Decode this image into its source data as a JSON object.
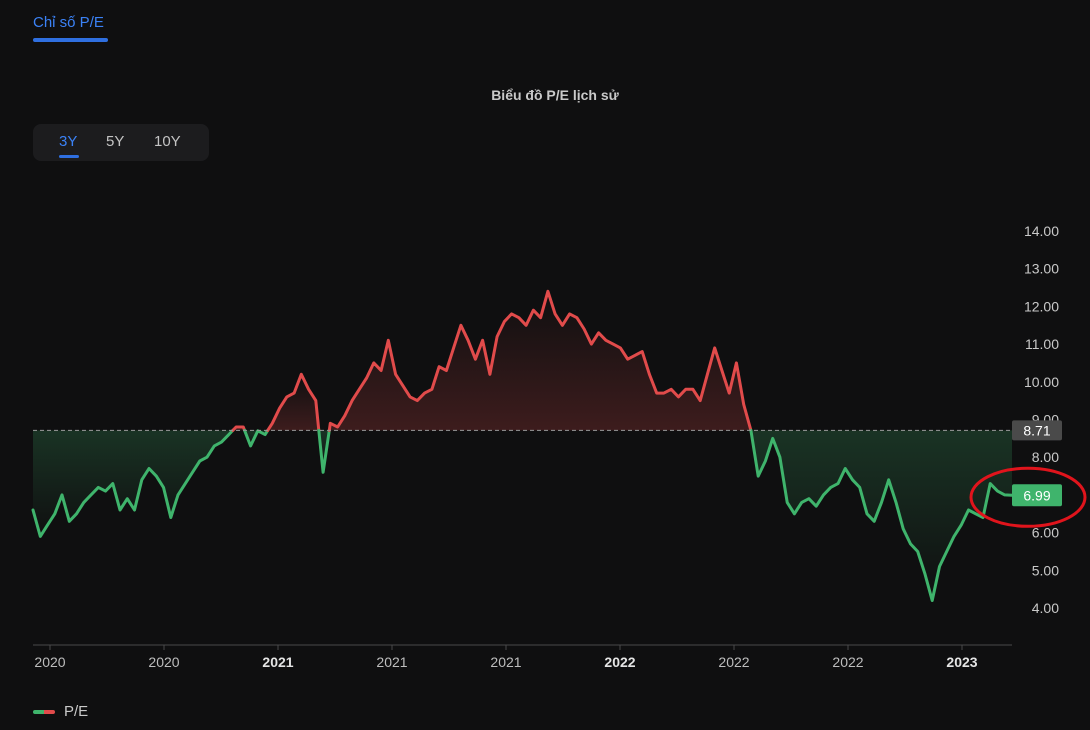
{
  "tab": {
    "label": "Chỉ số P/E"
  },
  "range_selector": {
    "options": [
      "3Y",
      "5Y",
      "10Y"
    ],
    "selected": "3Y"
  },
  "colors": {
    "above": "#e14b4b",
    "below": "#3fb46c",
    "reference": "#9a9a9a",
    "accent": "#3b82f6",
    "highlight_circle": "#e0141c"
  },
  "chart_data": {
    "type": "line",
    "title": "Biểu đồ P/E lịch sử",
    "legend": [
      {
        "name": "P/E",
        "position": "bottom-left"
      }
    ],
    "y_ticks": [
      "14.00",
      "13.00",
      "12.00",
      "11.00",
      "10.00",
      "9.00",
      "8.00",
      "7.00",
      "6.00",
      "5.00",
      "4.00"
    ],
    "ylim": [
      4,
      14
    ],
    "x_ticks": [
      {
        "label": "2020",
        "bold": false
      },
      {
        "label": "2020",
        "bold": false
      },
      {
        "label": "2021",
        "bold": true
      },
      {
        "label": "2021",
        "bold": false
      },
      {
        "label": "2021",
        "bold": false
      },
      {
        "label": "2022",
        "bold": true
      },
      {
        "label": "2022",
        "bold": false
      },
      {
        "label": "2022",
        "bold": false
      },
      {
        "label": "2023",
        "bold": true
      }
    ],
    "reference": {
      "value": 8.71,
      "label": "8.71"
    },
    "last": {
      "value": 6.99,
      "label": "6.99"
    },
    "series": [
      {
        "name": "P/E",
        "values": [
          6.6,
          5.9,
          6.2,
          6.5,
          7.0,
          6.3,
          6.5,
          6.8,
          7.0,
          7.2,
          7.1,
          7.3,
          6.6,
          6.9,
          6.6,
          7.4,
          7.7,
          7.5,
          7.2,
          6.4,
          7.0,
          7.3,
          7.6,
          7.9,
          8.0,
          8.3,
          8.4,
          8.6,
          8.8,
          8.8,
          8.3,
          8.7,
          8.6,
          8.9,
          9.3,
          9.6,
          9.7,
          10.2,
          9.8,
          9.5,
          7.6,
          8.9,
          8.8,
          9.1,
          9.5,
          9.8,
          10.1,
          10.5,
          10.3,
          11.1,
          10.2,
          9.9,
          9.6,
          9.5,
          9.7,
          9.8,
          10.4,
          10.3,
          10.9,
          11.5,
          11.1,
          10.6,
          11.1,
          10.2,
          11.2,
          11.6,
          11.8,
          11.7,
          11.5,
          11.9,
          11.7,
          12.4,
          11.8,
          11.5,
          11.8,
          11.7,
          11.4,
          11.0,
          11.3,
          11.1,
          11.0,
          10.9,
          10.6,
          10.7,
          10.8,
          10.2,
          9.7,
          9.7,
          9.8,
          9.6,
          9.8,
          9.8,
          9.5,
          10.2,
          10.9,
          10.3,
          9.7,
          10.5,
          9.4,
          8.71,
          7.5,
          7.9,
          8.5,
          8.0,
          6.8,
          6.5,
          6.8,
          6.9,
          6.7,
          7.0,
          7.2,
          7.3,
          7.7,
          7.4,
          7.2,
          6.5,
          6.3,
          6.8,
          7.4,
          6.8,
          6.1,
          5.7,
          5.5,
          4.9,
          4.2,
          5.1,
          5.5,
          5.9,
          6.2,
          6.6,
          6.5,
          6.4,
          7.3,
          7.1,
          7.0,
          6.99
        ]
      }
    ]
  }
}
